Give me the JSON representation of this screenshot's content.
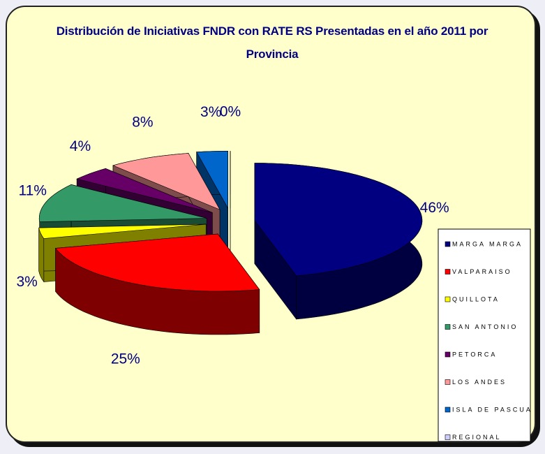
{
  "chart_data": {
    "type": "pie",
    "title": "Distribución de Iniciativas FNDR con RATE RS Presentadas en el año 2011 por Provincia",
    "categories": [
      "MARGA MARGA",
      "VALPARAISO",
      "QUILLOTA",
      "SAN ANTONIO",
      "PETORCA",
      "LOS ANDES",
      "ISLA DE PASCUA",
      "REGIONAL"
    ],
    "values": [
      46,
      25,
      3,
      11,
      4,
      8,
      3,
      0
    ],
    "value_labels": [
      "46%",
      "25%",
      "3%",
      "11%",
      "4%",
      "8%",
      "3%",
      "0%"
    ],
    "colors": [
      "#000080",
      "#ff0000",
      "#ffff00",
      "#339966",
      "#660066",
      "#ff9999",
      "#0066cc",
      "#ccccff"
    ],
    "legend": "right"
  }
}
